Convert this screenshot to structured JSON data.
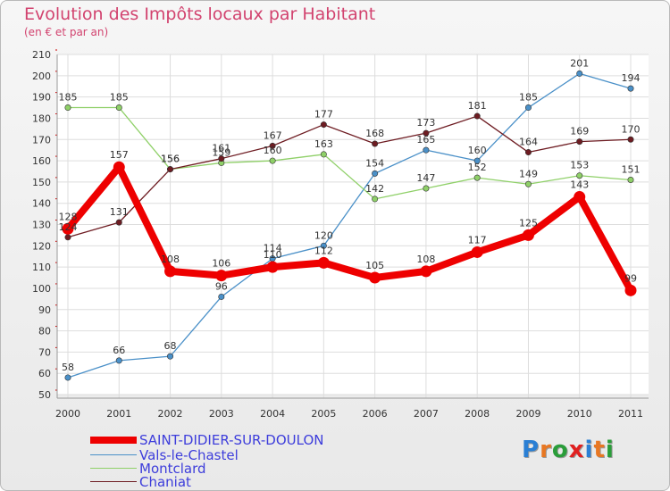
{
  "title": "Evolution des Impôts locaux par Habitant",
  "subtitle": "(en € et par an)",
  "brand": {
    "text": "Proxiti",
    "letter_colors": [
      "#2a7fd4",
      "#e87722",
      "#2a9d3a",
      "#e02020",
      "#2a7fd4",
      "#e87722",
      "#2a9d3a"
    ]
  },
  "chart_data": {
    "type": "line",
    "title": "Evolution des Impôts locaux par Habitant",
    "subtitle": "(en € et par an)",
    "xlabel": "",
    "ylabel": "",
    "x": [
      "2000",
      "2001",
      "2002",
      "2003",
      "2004",
      "2005",
      "2006",
      "2007",
      "2008",
      "2009",
      "2010",
      "2011"
    ],
    "ylim": [
      50,
      210
    ],
    "yticks": [
      50,
      60,
      70,
      80,
      90,
      100,
      110,
      120,
      130,
      140,
      150,
      160,
      170,
      180,
      190,
      200,
      210
    ],
    "grid": true,
    "legend_position": "bottom-left",
    "series": [
      {
        "name": "Vals-le-Chastel",
        "color": "#4a90c8",
        "values": [
          58,
          66,
          68,
          96,
          114,
          120,
          154,
          165,
          160,
          185,
          201,
          194
        ]
      },
      {
        "name": "Montclard",
        "color": "#8fd068",
        "values": [
          185,
          185,
          156,
          159,
          160,
          163,
          142,
          147,
          152,
          149,
          153,
          151
        ]
      },
      {
        "name": "Chaniat",
        "color": "#6e1c22",
        "values": [
          124,
          131,
          156,
          161,
          167,
          177,
          168,
          173,
          181,
          164,
          169,
          170
        ]
      },
      {
        "name": "SAINT-DIDIER-SUR-DOULON",
        "color": "#ee0000",
        "values": [
          128,
          157,
          108,
          106,
          110,
          112,
          105,
          108,
          117,
          125,
          143,
          99
        ]
      }
    ],
    "legend_order": [
      "SAINT-DIDIER-SUR-DOULON",
      "Vals-le-Chastel",
      "Montclard",
      "Chaniat"
    ]
  }
}
